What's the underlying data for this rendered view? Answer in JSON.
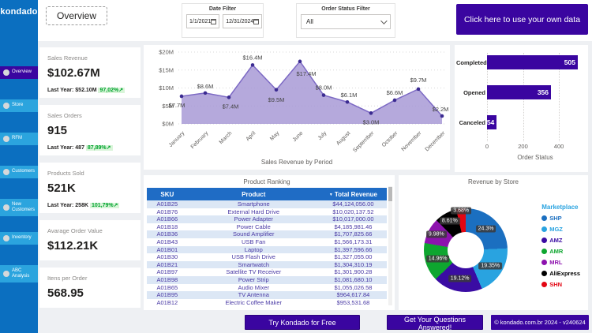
{
  "brand": {
    "logo": "kondado"
  },
  "header": {
    "tab": "Overview",
    "date_filter": {
      "label": "Date Filter",
      "start": "1/1/2021",
      "end": "12/31/2024"
    },
    "status_filter": {
      "label": "Order Status Filter",
      "value": "All"
    },
    "cta": "Click here to use your own data"
  },
  "sidebar": {
    "items": [
      {
        "label": "Overview",
        "active": true
      },
      {
        "label": "Store",
        "active": false
      },
      {
        "label": "RFM",
        "active": false
      },
      {
        "label": "Customers",
        "active": false
      },
      {
        "label": "New Customers",
        "active": false
      },
      {
        "label": "Inventory",
        "active": false
      },
      {
        "label": "ABC Analysis",
        "active": false
      }
    ]
  },
  "kpis": [
    {
      "label": "Sales Revenue",
      "value": "$102.67M",
      "last_year": "Last Year: $52.10M",
      "delta": "97,02%"
    },
    {
      "label": "Sales Orders",
      "value": "915",
      "last_year": "Last Year: 487",
      "delta": "87,89%"
    },
    {
      "label": "Products Sold",
      "value": "521K",
      "last_year": "Last Year: 258K",
      "delta": "101,79%"
    },
    {
      "label": "Avarage Order Value",
      "value": "$112.21K",
      "last_year": null,
      "delta": null
    },
    {
      "label": "Itens per Order",
      "value": "568.95",
      "last_year": null,
      "delta": null
    }
  ],
  "chart_data": [
    {
      "type": "area",
      "title": "Sales Revenue by Period",
      "x": [
        "January",
        "February",
        "March",
        "April",
        "May",
        "June",
        "July",
        "August",
        "September",
        "October",
        "November",
        "December"
      ],
      "values": [
        7.7,
        8.6,
        7.4,
        16.4,
        9.5,
        17.4,
        8.0,
        6.1,
        3.0,
        6.6,
        9.7,
        2.2
      ],
      "labels": [
        "$7.7M",
        "$8.6M",
        "$7.4M",
        "$16.4M",
        "$9.5M",
        "$17.4M",
        "$8.0M",
        "$6.1M",
        "$3.0M",
        "$6.6M",
        "$9.7M",
        "$2.2M"
      ],
      "ylim": [
        0,
        20
      ],
      "yticks": [
        "$0M",
        "$5M",
        "$10M",
        "$15M",
        "$20M"
      ],
      "grid": true,
      "colors": {
        "fill": "#a89ad6",
        "line": "#7c69c4",
        "marker": "#3b2b91"
      }
    },
    {
      "type": "bar",
      "orientation": "horizontal",
      "xlabel": "Order Status",
      "categories": [
        "Completed",
        "Opened",
        "Canceled"
      ],
      "values": [
        505,
        356,
        54
      ],
      "xticks": [
        "0",
        "200",
        "400"
      ],
      "xlim": [
        0,
        536
      ],
      "bar_color": "#3a05a0"
    },
    {
      "type": "pie",
      "title": "Revenue by Store",
      "legend_title": "Marketplace",
      "legend_position": "right",
      "slices": [
        {
          "name": "SHP",
          "pct": 24.3,
          "label": "24.3%",
          "color": "#1b6fc0"
        },
        {
          "name": "MGZ",
          "pct": 19.35,
          "label": "19.35%",
          "color": "#29a3e0"
        },
        {
          "name": "AMZ",
          "pct": 19.12,
          "label": "19.12%",
          "color": "#3a0ca3"
        },
        {
          "name": "AMR",
          "pct": 14.96,
          "label": "14.96%",
          "color": "#0ea62f"
        },
        {
          "name": "MRL",
          "pct": 9.98,
          "label": "9.98%",
          "color": "#8d12ae"
        },
        {
          "name": "AliExpress",
          "pct": 8.61,
          "label": "8.61%",
          "color": "#000000"
        },
        {
          "name": "SHN",
          "pct": 3.68,
          "label": "3.68%",
          "color": "#e30613"
        }
      ]
    }
  ],
  "table": {
    "title": "Product Ranking",
    "columns": [
      "SKU",
      "Product",
      "Total Revenue"
    ],
    "rows": [
      [
        "A01B25",
        "Smartphone",
        "$44,124,056.00"
      ],
      [
        "A01B76",
        "External Hard Drive",
        "$10,020,137.52"
      ],
      [
        "A01B66",
        "Power Adapter",
        "$10,017,000.00"
      ],
      [
        "A01B18",
        "Power Cable",
        "$4,185,981.46"
      ],
      [
        "A01B36",
        "Sound Amplifier",
        "$1,707,825.66"
      ],
      [
        "A01B43",
        "USB Fan",
        "$1,566,173.31"
      ],
      [
        "A01B01",
        "Laptop",
        "$1,397,596.66"
      ],
      [
        "A01B30",
        "USB Flash Drive",
        "$1,327,055.00"
      ],
      [
        "A01B21",
        "Smartwatch",
        "$1,304,310.19"
      ],
      [
        "A01B97",
        "Satellite TV Receiver",
        "$1,301,900.28"
      ],
      [
        "A01B98",
        "Power Strip",
        "$1,081,680.10"
      ],
      [
        "A01B65",
        "Audio Mixer",
        "$1,055,026.58"
      ],
      [
        "A01B95",
        "TV Antenna",
        "$964,617.84"
      ],
      [
        "A01B12",
        "Electric Coffee Maker",
        "$953,531.68"
      ]
    ]
  },
  "footer": {
    "try_button": "Try Kondado for Free",
    "questions_button": "Get Your Questions Answered!",
    "copyright": "© kondado.com.br 2024 - v240624"
  }
}
